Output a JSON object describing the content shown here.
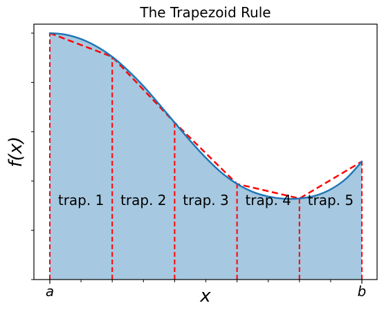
{
  "chart_data": {
    "type": "area",
    "title": "The Trapezoid Rule",
    "xlabel": "x",
    "ylabel": "f(x)",
    "xlim": [
      0.0,
      1.0
    ],
    "ylim": [
      0.0,
      1.0
    ],
    "x_tick_labels": [
      {
        "x": 0.0,
        "label": "a"
      },
      {
        "x": 1.0,
        "label": "b"
      }
    ],
    "curve": {
      "name": "",
      "color": "#1f77b4",
      "x": [
        0.0,
        0.05,
        0.1,
        0.15,
        0.2,
        0.25,
        0.3,
        0.35,
        0.4,
        0.45,
        0.5,
        0.55,
        0.6,
        0.65,
        0.7,
        0.75,
        0.8,
        0.85,
        0.9,
        0.95,
        1.0
      ],
      "y": [
        1.0,
        0.994,
        0.976,
        0.946,
        0.904,
        0.849,
        0.785,
        0.712,
        0.637,
        0.563,
        0.494,
        0.434,
        0.388,
        0.356,
        0.337,
        0.328,
        0.329,
        0.34,
        0.366,
        0.41,
        0.479
      ]
    },
    "trapezoid_nodes": {
      "name": "",
      "color": "#ff0000",
      "x": [
        0.0,
        0.2,
        0.4,
        0.6,
        0.8,
        1.0
      ],
      "y": [
        1.0,
        0.904,
        0.637,
        0.388,
        0.329,
        0.479
      ]
    },
    "fill_color": "#a6c8e0",
    "regions": [
      {
        "label": "trap. 1"
      },
      {
        "label": "trap. 2"
      },
      {
        "label": "trap. 3"
      },
      {
        "label": "trap. 4"
      },
      {
        "label": "trap. 5"
      }
    ],
    "grid": false,
    "legend": "none"
  }
}
